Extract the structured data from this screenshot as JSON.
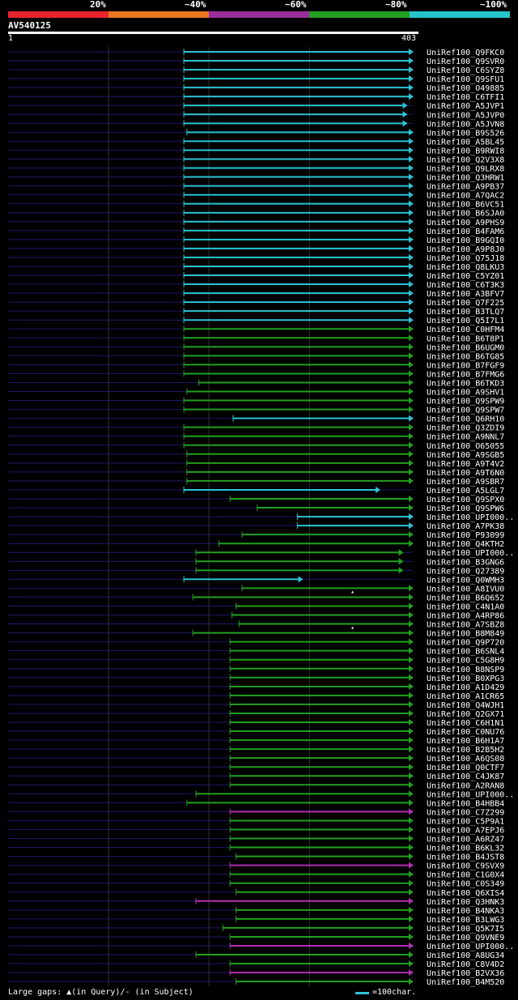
{
  "legend": {
    "labels": [
      "20%",
      "~40%",
      "~60%",
      "~80%",
      "~100%"
    ],
    "colors": [
      "#e8232f",
      "#e87722",
      "#9b2d9c",
      "#22a021",
      "#26c4c9"
    ]
  },
  "query": {
    "id": "AV540125",
    "start_label": "1",
    "end_label": "403",
    "length": 403
  },
  "colors": {
    "cyan": "#2ec4d6",
    "green": "#22a021",
    "magenta": "#b030b0",
    "query_line": "#1a1a6a",
    "grid": "#333333"
  },
  "hits": [
    {
      "id": "UniRef100_Q9FKC0",
      "s": 175,
      "e": 403,
      "c": "cyan"
    },
    {
      "id": "UniRef100_Q9SVR0",
      "s": 175,
      "e": 403,
      "c": "cyan"
    },
    {
      "id": "UniRef100_C6SYZ8",
      "s": 175,
      "e": 403,
      "c": "cyan"
    },
    {
      "id": "UniRef100_Q9SFU1",
      "s": 175,
      "e": 403,
      "c": "cyan"
    },
    {
      "id": "UniRef100_O49885",
      "s": 175,
      "e": 403,
      "c": "cyan"
    },
    {
      "id": "UniRef100_C6TFI1",
      "s": 175,
      "e": 403,
      "c": "cyan"
    },
    {
      "id": "UniRef100_A5JVP1",
      "s": 175,
      "e": 397,
      "c": "cyan"
    },
    {
      "id": "UniRef100_A5JVP0",
      "s": 175,
      "e": 397,
      "c": "cyan"
    },
    {
      "id": "UniRef100_A5JVN8",
      "s": 175,
      "e": 397,
      "c": "cyan"
    },
    {
      "id": "UniRef100_B9S526",
      "s": 178,
      "e": 403,
      "c": "cyan"
    },
    {
      "id": "UniRef100_A5BL45",
      "s": 175,
      "e": 403,
      "c": "cyan"
    },
    {
      "id": "UniRef100_B9RWI8",
      "s": 175,
      "e": 403,
      "c": "cyan"
    },
    {
      "id": "UniRef100_Q2V3X8",
      "s": 175,
      "e": 403,
      "c": "cyan"
    },
    {
      "id": "UniRef100_Q9LRX8",
      "s": 175,
      "e": 403,
      "c": "cyan"
    },
    {
      "id": "UniRef100_Q3HRW1",
      "s": 175,
      "e": 403,
      "c": "cyan"
    },
    {
      "id": "UniRef100_A9PB37",
      "s": 175,
      "e": 403,
      "c": "cyan"
    },
    {
      "id": "UniRef100_A7QAC2",
      "s": 175,
      "e": 403,
      "c": "cyan"
    },
    {
      "id": "UniRef100_B6VC51",
      "s": 175,
      "e": 403,
      "c": "cyan"
    },
    {
      "id": "UniRef100_B6SJA0",
      "s": 175,
      "e": 403,
      "c": "cyan"
    },
    {
      "id": "UniRef100_A9PHS9",
      "s": 175,
      "e": 403,
      "c": "cyan"
    },
    {
      "id": "UniRef100_B4FAM6",
      "s": 175,
      "e": 403,
      "c": "cyan"
    },
    {
      "id": "UniRef100_B9GQI0",
      "s": 175,
      "e": 403,
      "c": "cyan"
    },
    {
      "id": "UniRef100_A9P8J0",
      "s": 175,
      "e": 403,
      "c": "cyan"
    },
    {
      "id": "UniRef100_Q75J18",
      "s": 175,
      "e": 403,
      "c": "cyan"
    },
    {
      "id": "UniRef100_Q8LKU3",
      "s": 175,
      "e": 403,
      "c": "cyan"
    },
    {
      "id": "UniRef100_C5YZ01",
      "s": 175,
      "e": 403,
      "c": "cyan"
    },
    {
      "id": "UniRef100_C6T3K3",
      "s": 175,
      "e": 403,
      "c": "cyan"
    },
    {
      "id": "UniRef100_A3BFV7",
      "s": 175,
      "e": 403,
      "c": "cyan"
    },
    {
      "id": "UniRef100_Q7F225",
      "s": 175,
      "e": 403,
      "c": "cyan"
    },
    {
      "id": "UniRef100_B3TLQ7",
      "s": 175,
      "e": 403,
      "c": "cyan"
    },
    {
      "id": "UniRef100_Q5I7L1",
      "s": 175,
      "e": 403,
      "c": "cyan"
    },
    {
      "id": "UniRef100_C0HFM4",
      "s": 175,
      "e": 403,
      "c": "green"
    },
    {
      "id": "UniRef100_B6T8P1",
      "s": 175,
      "e": 403,
      "c": "green"
    },
    {
      "id": "UniRef100_B6UGM0",
      "s": 175,
      "e": 403,
      "c": "green"
    },
    {
      "id": "UniRef100_B6TG85",
      "s": 175,
      "e": 403,
      "c": "green"
    },
    {
      "id": "UniRef100_B7FGF9",
      "s": 175,
      "e": 403,
      "c": "green"
    },
    {
      "id": "UniRef100_B7FMG6",
      "s": 175,
      "e": 403,
      "c": "green"
    },
    {
      "id": "UniRef100_B6TKD3",
      "s": 190,
      "e": 403,
      "c": "green"
    },
    {
      "id": "UniRef100_A9SHV1",
      "s": 178,
      "e": 403,
      "c": "green"
    },
    {
      "id": "UniRef100_Q9SPW9",
      "s": 175,
      "e": 403,
      "c": "green"
    },
    {
      "id": "UniRef100_Q9SPW7",
      "s": 175,
      "e": 403,
      "c": "green"
    },
    {
      "id": "UniRef100_Q6RH10",
      "s": 224,
      "e": 403,
      "c": "cyan"
    },
    {
      "id": "UniRef100_Q3ZDI9",
      "s": 175,
      "e": 403,
      "c": "green"
    },
    {
      "id": "UniRef100_A9NNL7",
      "s": 175,
      "e": 403,
      "c": "green"
    },
    {
      "id": "UniRef100_O65055",
      "s": 175,
      "e": 403,
      "c": "green"
    },
    {
      "id": "UniRef100_A9SGB5",
      "s": 178,
      "e": 403,
      "c": "green"
    },
    {
      "id": "UniRef100_A9T4V2",
      "s": 178,
      "e": 403,
      "c": "green"
    },
    {
      "id": "UniRef100_A9T6N0",
      "s": 178,
      "e": 403,
      "c": "green"
    },
    {
      "id": "UniRef100_A9SBR7",
      "s": 178,
      "e": 403,
      "c": "green"
    },
    {
      "id": "UniRef100_A5LGL7",
      "s": 175,
      "e": 370,
      "c": "cyan"
    },
    {
      "id": "UniRef100_Q9SPX0",
      "s": 221,
      "e": 403,
      "c": "green"
    },
    {
      "id": "UniRef100_Q9SPW6",
      "s": 248,
      "e": 403,
      "c": "green"
    },
    {
      "id": "UniRef100_UPI000..",
      "s": 288,
      "e": 403,
      "c": "cyan"
    },
    {
      "id": "UniRef100_A7PK38",
      "s": 288,
      "e": 403,
      "c": "cyan"
    },
    {
      "id": "UniRef100_P93099",
      "s": 233,
      "e": 403,
      "c": "green"
    },
    {
      "id": "UniRef100_Q4KTH2",
      "s": 210,
      "e": 403,
      "c": "green"
    },
    {
      "id": "UniRef100_UPI000..",
      "s": 187,
      "e": 393,
      "c": "green"
    },
    {
      "id": "UniRef100_B3GNG6",
      "s": 187,
      "e": 393,
      "c": "green"
    },
    {
      "id": "UniRef100_Q27389",
      "s": 187,
      "e": 393,
      "c": "green"
    },
    {
      "id": "UniRef100_Q0WMH3",
      "s": 175,
      "e": 293,
      "c": "cyan"
    },
    {
      "id": "UniRef100_A8IVU0",
      "s": 233,
      "e": 403,
      "c": "green"
    },
    {
      "id": "UniRef100_B6Q652",
      "s": 184,
      "e": 403,
      "c": "green",
      "gap": 343
    },
    {
      "id": "UniRef100_C4N1A0",
      "s": 227,
      "e": 403,
      "c": "green"
    },
    {
      "id": "UniRef100_A4RP86",
      "s": 223,
      "e": 403,
      "c": "green"
    },
    {
      "id": "UniRef100_A7SBZ8",
      "s": 230,
      "e": 403,
      "c": "green"
    },
    {
      "id": "UniRef100_B8M849",
      "s": 184,
      "e": 403,
      "c": "green",
      "gap": 343
    },
    {
      "id": "UniRef100_Q9P720",
      "s": 221,
      "e": 403,
      "c": "green"
    },
    {
      "id": "UniRef100_B6SNL4",
      "s": 221,
      "e": 403,
      "c": "green"
    },
    {
      "id": "UniRef100_C5G8H9",
      "s": 221,
      "e": 403,
      "c": "green"
    },
    {
      "id": "UniRef100_B8NSP9",
      "s": 221,
      "e": 403,
      "c": "green"
    },
    {
      "id": "UniRef100_B0XPG3",
      "s": 221,
      "e": 403,
      "c": "green"
    },
    {
      "id": "UniRef100_A1D429",
      "s": 221,
      "e": 403,
      "c": "green"
    },
    {
      "id": "UniRef100_A1CR65",
      "s": 221,
      "e": 403,
      "c": "green"
    },
    {
      "id": "UniRef100_Q4WJH1",
      "s": 221,
      "e": 403,
      "c": "green"
    },
    {
      "id": "UniRef100_Q2GX71",
      "s": 221,
      "e": 403,
      "c": "green"
    },
    {
      "id": "UniRef100_C6H1N1",
      "s": 221,
      "e": 403,
      "c": "green"
    },
    {
      "id": "UniRef100_C0NU76",
      "s": 221,
      "e": 403,
      "c": "green"
    },
    {
      "id": "UniRef100_B6H1A7",
      "s": 221,
      "e": 403,
      "c": "green"
    },
    {
      "id": "UniRef100_B2B5H2",
      "s": 221,
      "e": 403,
      "c": "green"
    },
    {
      "id": "UniRef100_A6QS08",
      "s": 221,
      "e": 403,
      "c": "green"
    },
    {
      "id": "UniRef100_Q0CTF7",
      "s": 221,
      "e": 403,
      "c": "green"
    },
    {
      "id": "UniRef100_C4JK87",
      "s": 221,
      "e": 403,
      "c": "green"
    },
    {
      "id": "UniRef100_A2RAN8",
      "s": 221,
      "e": 403,
      "c": "green"
    },
    {
      "id": "UniRef100_UPI000..",
      "s": 187,
      "e": 403,
      "c": "green"
    },
    {
      "id": "UniRef100_B4HBB4",
      "s": 178,
      "e": 403,
      "c": "green"
    },
    {
      "id": "UniRef100_C7Z299",
      "s": 221,
      "e": 403,
      "c": "magenta"
    },
    {
      "id": "UniRef100_C5P9A1",
      "s": 221,
      "e": 403,
      "c": "green"
    },
    {
      "id": "UniRef100_A7EPJ6",
      "s": 221,
      "e": 403,
      "c": "green"
    },
    {
      "id": "UniRef100_A6RZ47",
      "s": 221,
      "e": 403,
      "c": "green"
    },
    {
      "id": "UniRef100_B6KL32",
      "s": 221,
      "e": 403,
      "c": "green"
    },
    {
      "id": "UniRef100_B4JST8",
      "s": 227,
      "e": 403,
      "c": "green"
    },
    {
      "id": "UniRef100_C9SVX9",
      "s": 221,
      "e": 403,
      "c": "magenta"
    },
    {
      "id": "UniRef100_C1G0X4",
      "s": 221,
      "e": 403,
      "c": "green"
    },
    {
      "id": "UniRef100_C0S349",
      "s": 221,
      "e": 403,
      "c": "green"
    },
    {
      "id": "UniRef100_Q6XIS4",
      "s": 227,
      "e": 403,
      "c": "green"
    },
    {
      "id": "UniRef100_Q3HNK3",
      "s": 187,
      "e": 403,
      "c": "magenta"
    },
    {
      "id": "UniRef100_B4NKA3",
      "s": 227,
      "e": 403,
      "c": "green"
    },
    {
      "id": "UniRef100_B3LWG3",
      "s": 227,
      "e": 403,
      "c": "green"
    },
    {
      "id": "UniRef100_Q5K7I5",
      "s": 214,
      "e": 403,
      "c": "green"
    },
    {
      "id": "UniRef100_Q9VNE9",
      "s": 221,
      "e": 403,
      "c": "green"
    },
    {
      "id": "UniRef100_UPI000..",
      "s": 221,
      "e": 403,
      "c": "magenta"
    },
    {
      "id": "UniRef100_A8UG34",
      "s": 187,
      "e": 403,
      "c": "green"
    },
    {
      "id": "UniRef100_C8V4D2",
      "s": 221,
      "e": 403,
      "c": "green"
    },
    {
      "id": "UniRef100_B2VX36",
      "s": 221,
      "e": 403,
      "c": "magenta"
    },
    {
      "id": "UniRef100_B4M520",
      "s": 227,
      "e": 403,
      "c": "green"
    }
  ],
  "footer": {
    "gaps_text": "Large gaps: ▲(in Query)/- (in Subject)",
    "scale_text": "=100char."
  }
}
